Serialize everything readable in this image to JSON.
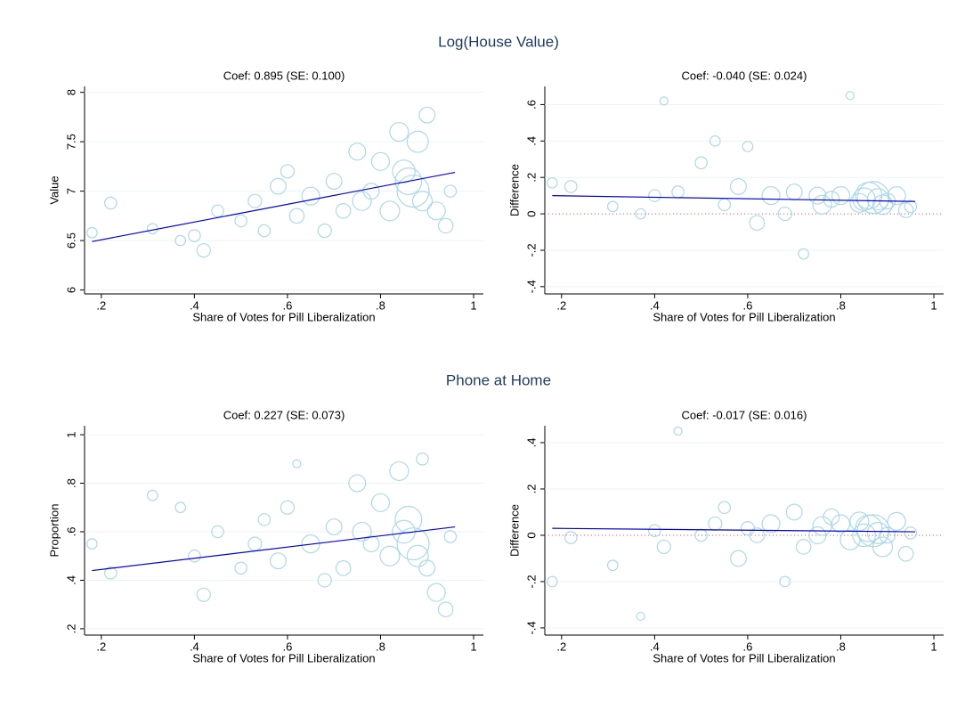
{
  "panel_titles": [
    "Log(House Value)",
    "Phone at Home"
  ],
  "chart_data": [
    {
      "type": "scatter",
      "title": "Coef: 0.895 (SE: 0.100)",
      "x_label": "Share of Votes for Pill Liberalization",
      "y_label": "Value",
      "xlim": [
        0.164,
        1.021
      ],
      "ylim": [
        5.96,
        8.06
      ],
      "xticks": [
        {
          "value": 0.2,
          "label": ".2"
        },
        {
          "value": 0.4,
          "label": ".4"
        },
        {
          "value": 0.6,
          "label": ".6"
        },
        {
          "value": 0.8,
          "label": ".8"
        },
        1
      ],
      "yticks": [
        6,
        6.5,
        7,
        7.5,
        8
      ],
      "color": "#add8e6",
      "x": [
        0.18,
        0.22,
        0.31,
        0.37,
        0.4,
        0.42,
        0.45,
        0.5,
        0.53,
        0.55,
        0.58,
        0.6,
        0.62,
        0.65,
        0.68,
        0.7,
        0.72,
        0.75,
        0.76,
        0.78,
        0.8,
        0.82,
        0.84,
        0.85,
        0.86,
        0.87,
        0.88,
        0.89,
        0.9,
        0.92,
        0.94,
        0.95
      ],
      "values": [
        6.58,
        6.88,
        6.62,
        6.5,
        6.55,
        6.4,
        6.8,
        6.7,
        6.9,
        6.6,
        7.05,
        7.2,
        6.75,
        6.95,
        6.6,
        7.1,
        6.8,
        7.4,
        6.9,
        7.0,
        7.3,
        6.8,
        7.6,
        7.2,
        7.1,
        7.0,
        7.5,
        6.9,
        7.77,
        6.8,
        6.65,
        7.0
      ],
      "sizes": [
        2,
        3,
        2,
        2,
        3,
        4,
        3,
        3,
        4,
        3,
        6,
        4,
        5,
        8,
        4,
        6,
        5,
        7,
        9,
        6,
        8,
        10,
        9,
        14,
        20,
        30,
        12,
        10,
        6,
        8,
        5,
        3
      ],
      "fit": {
        "x": [
          0.18,
          0.96
        ],
        "values": [
          6.49,
          7.19
        ],
        "color": "#0000cd"
      }
    },
    {
      "type": "scatter",
      "title": "Coef: -0.040 (SE: 0.024)",
      "x_label": "Share of Votes for Pill Liberalization",
      "y_label": "Difference",
      "xlim": [
        0.164,
        1.021
      ],
      "ylim": [
        -0.44,
        0.7
      ],
      "xticks": [
        {
          "value": 0.2,
          "label": ".2"
        },
        {
          "value": 0.4,
          "label": ".4"
        },
        {
          "value": 0.6,
          "label": ".6"
        },
        {
          "value": 0.8,
          "label": ".8"
        },
        1
      ],
      "yticks": [
        {
          "value": -0.4,
          "label": "-.4"
        },
        {
          "value": -0.2,
          "label": "-.2"
        },
        0,
        {
          "value": 0.2,
          "label": ".2"
        },
        {
          "value": 0.4,
          "label": ".4"
        },
        {
          "value": 0.6,
          "label": ".6"
        }
      ],
      "color": "#add8e6",
      "x": [
        0.18,
        0.22,
        0.31,
        0.37,
        0.4,
        0.42,
        0.45,
        0.5,
        0.53,
        0.55,
        0.58,
        0.6,
        0.62,
        0.65,
        0.68,
        0.7,
        0.72,
        0.75,
        0.76,
        0.78,
        0.8,
        0.82,
        0.84,
        0.85,
        0.86,
        0.87,
        0.88,
        0.89,
        0.9,
        0.92,
        0.94,
        0.95
      ],
      "values": [
        0.17,
        0.15,
        0.04,
        0.0,
        0.1,
        0.62,
        0.12,
        0.28,
        0.4,
        0.05,
        0.15,
        0.37,
        -0.05,
        0.1,
        0.0,
        0.12,
        -0.22,
        0.1,
        0.05,
        0.08,
        0.1,
        0.65,
        0.06,
        0.08,
        0.1,
        0.09,
        0.08,
        0.05,
        0.07,
        0.1,
        0.02,
        0.04
      ],
      "sizes": [
        2,
        3,
        2,
        2,
        3,
        1,
        3,
        3,
        2,
        3,
        6,
        2,
        5,
        8,
        4,
        6,
        2,
        7,
        9,
        6,
        8,
        1,
        9,
        14,
        20,
        30,
        12,
        10,
        6,
        8,
        5,
        3
      ],
      "fit": {
        "x": [
          0.18,
          0.96
        ],
        "values": [
          0.1,
          0.068
        ],
        "color": "#0000cd"
      },
      "reference_line": {
        "value": 0,
        "color": "#e06060"
      }
    },
    {
      "type": "scatter",
      "title": "Coef: 0.227 (SE: 0.073)",
      "x_label": "Share of Votes for Pill Liberalization",
      "y_label": "Proportion",
      "xlim": [
        0.164,
        1.021
      ],
      "ylim": [
        0.174,
        1.037
      ],
      "xticks": [
        {
          "value": 0.2,
          "label": ".2"
        },
        {
          "value": 0.4,
          "label": ".4"
        },
        {
          "value": 0.6,
          "label": ".6"
        },
        {
          "value": 0.8,
          "label": ".8"
        },
        1
      ],
      "yticks": [
        {
          "value": 0.2,
          "label": ".2"
        },
        {
          "value": 0.4,
          "label": ".4"
        },
        {
          "value": 0.6,
          "label": ".6"
        },
        {
          "value": 0.8,
          "label": ".8"
        },
        1
      ],
      "color": "#add8e6",
      "x": [
        0.18,
        0.22,
        0.31,
        0.37,
        0.4,
        0.42,
        0.45,
        0.5,
        0.53,
        0.55,
        0.58,
        0.6,
        0.62,
        0.65,
        0.68,
        0.7,
        0.72,
        0.75,
        0.76,
        0.78,
        0.8,
        0.82,
        0.84,
        0.85,
        0.86,
        0.87,
        0.88,
        0.89,
        0.9,
        0.92,
        0.94,
        0.95
      ],
      "values": [
        0.55,
        0.43,
        0.75,
        0.7,
        0.5,
        0.34,
        0.6,
        0.45,
        0.55,
        0.65,
        0.48,
        0.7,
        0.88,
        0.55,
        0.4,
        0.62,
        0.45,
        0.8,
        0.6,
        0.55,
        0.72,
        0.5,
        0.85,
        0.6,
        0.65,
        0.55,
        0.5,
        0.9,
        0.45,
        0.35,
        0.28,
        0.58
      ],
      "sizes": [
        2,
        3,
        2,
        2,
        3,
        4,
        3,
        3,
        4,
        3,
        6,
        4,
        1,
        8,
        4,
        6,
        5,
        7,
        9,
        6,
        8,
        10,
        9,
        14,
        20,
        30,
        12,
        3,
        6,
        8,
        5,
        3
      ],
      "fit": {
        "x": [
          0.18,
          0.96
        ],
        "values": [
          0.44,
          0.62
        ],
        "color": "#0000cd"
      }
    },
    {
      "type": "scatter",
      "title": "Coef: -0.017 (SE: 0.016)",
      "x_label": "Share of Votes for Pill Liberalization",
      "y_label": "Difference",
      "xlim": [
        0.164,
        1.021
      ],
      "ylim": [
        -0.431,
        0.473
      ],
      "xticks": [
        {
          "value": 0.2,
          "label": ".2"
        },
        {
          "value": 0.4,
          "label": ".4"
        },
        {
          "value": 0.6,
          "label": ".6"
        },
        {
          "value": 0.8,
          "label": ".8"
        },
        1
      ],
      "yticks": [
        {
          "value": -0.4,
          "label": "-.4"
        },
        {
          "value": -0.2,
          "label": "-.2"
        },
        0,
        {
          "value": 0.2,
          "label": ".2"
        },
        {
          "value": 0.4,
          "label": ".4"
        }
      ],
      "color": "#add8e6",
      "x": [
        0.18,
        0.22,
        0.31,
        0.37,
        0.4,
        0.42,
        0.45,
        0.5,
        0.53,
        0.55,
        0.58,
        0.6,
        0.62,
        0.65,
        0.68,
        0.7,
        0.72,
        0.75,
        0.76,
        0.78,
        0.8,
        0.82,
        0.84,
        0.85,
        0.86,
        0.87,
        0.88,
        0.89,
        0.9,
        0.92,
        0.94,
        0.95
      ],
      "values": [
        -0.2,
        -0.01,
        -0.13,
        -0.35,
        0.02,
        -0.05,
        0.45,
        0.0,
        0.05,
        0.12,
        -0.1,
        0.03,
        0.0,
        0.05,
        -0.2,
        0.1,
        -0.05,
        0.0,
        0.04,
        0.08,
        0.05,
        -0.02,
        0.06,
        0.0,
        0.03,
        0.02,
        0.01,
        -0.05,
        0.0,
        0.06,
        -0.08,
        0.01
      ],
      "sizes": [
        2,
        3,
        2,
        1,
        3,
        4,
        1,
        3,
        4,
        3,
        6,
        4,
        5,
        8,
        2,
        6,
        5,
        7,
        9,
        6,
        8,
        10,
        9,
        14,
        20,
        30,
        12,
        10,
        6,
        8,
        5,
        3
      ],
      "fit": {
        "x": [
          0.18,
          0.96
        ],
        "values": [
          0.03,
          0.015
        ],
        "color": "#0000cd"
      },
      "reference_line": {
        "value": 0,
        "color": "#e06060"
      }
    }
  ]
}
